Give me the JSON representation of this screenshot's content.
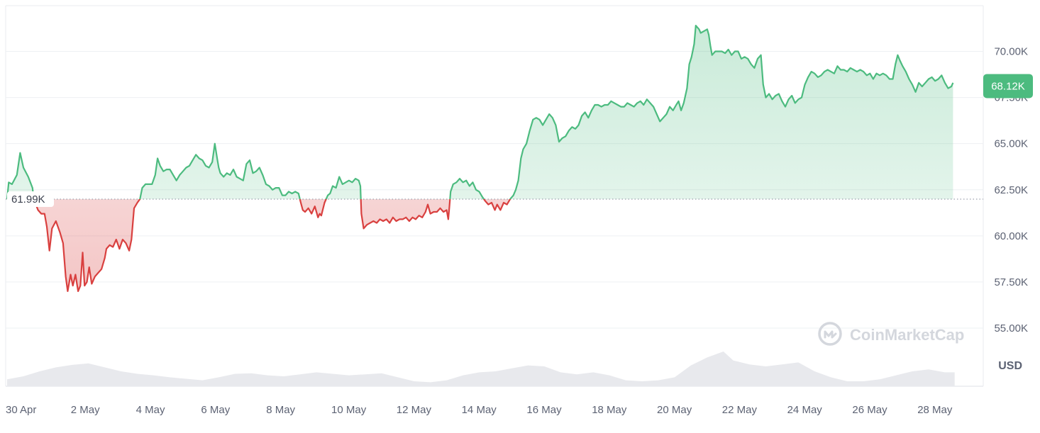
{
  "chart_data": {
    "type": "area",
    "currency_label": "USD",
    "watermark": "CoinMarketCap",
    "reference_value": 61990,
    "reference_label": "61.99K",
    "current_value": 68120,
    "current_label": "68.12K",
    "x_range_days": [
      0,
      30
    ],
    "ylim": [
      52500,
      72500
    ],
    "grid": true,
    "y_ticks": [
      {
        "value": 55000,
        "label": "55.00K"
      },
      {
        "value": 57500,
        "label": "57.50K"
      },
      {
        "value": 60000,
        "label": "60.00K"
      },
      {
        "value": 62500,
        "label": "62.50K"
      },
      {
        "value": 65000,
        "label": "65.00K"
      },
      {
        "value": 67500,
        "label": "67.50K"
      },
      {
        "value": 70000,
        "label": "70.00K"
      }
    ],
    "x_ticks": [
      {
        "day": 0,
        "label": "30 Apr"
      },
      {
        "day": 2,
        "label": "2 May"
      },
      {
        "day": 4,
        "label": "4 May"
      },
      {
        "day": 6,
        "label": "6 May"
      },
      {
        "day": 8,
        "label": "8 May"
      },
      {
        "day": 10,
        "label": "10 May"
      },
      {
        "day": 12,
        "label": "12 May"
      },
      {
        "day": 14,
        "label": "14 May"
      },
      {
        "day": 16,
        "label": "16 May"
      },
      {
        "day": 18,
        "label": "18 May"
      },
      {
        "day": 20,
        "label": "20 May"
      },
      {
        "day": 22,
        "label": "22 May"
      },
      {
        "day": 24,
        "label": "24 May"
      },
      {
        "day": 26,
        "label": "26 May"
      },
      {
        "day": 28,
        "label": "28 May"
      }
    ],
    "colors": {
      "up": "#4cbb7f",
      "down": "#d9403f",
      "up_fill": "#4cbb7f",
      "down_fill": "#d9403f",
      "grid": "#eef0f3",
      "volume": "#e8e9ed",
      "badge": "#4cbb7f"
    },
    "price_series": [
      [
        0.0,
        62000
      ],
      [
        0.05,
        62900
      ],
      [
        0.15,
        62800
      ],
      [
        0.3,
        63300
      ],
      [
        0.4,
        64500
      ],
      [
        0.5,
        63700
      ],
      [
        0.65,
        63200
      ],
      [
        0.78,
        62600
      ],
      [
        0.82,
        61990
      ],
      [
        0.95,
        61400
      ],
      [
        1.05,
        61200
      ],
      [
        1.15,
        61200
      ],
      [
        1.22,
        60500
      ],
      [
        1.3,
        59200
      ],
      [
        1.38,
        60400
      ],
      [
        1.5,
        60800
      ],
      [
        1.62,
        60200
      ],
      [
        1.72,
        59600
      ],
      [
        1.8,
        57800
      ],
      [
        1.86,
        57000
      ],
      [
        1.95,
        57900
      ],
      [
        2.02,
        57300
      ],
      [
        2.1,
        57900
      ],
      [
        2.18,
        57000
      ],
      [
        2.25,
        57300
      ],
      [
        2.32,
        59100
      ],
      [
        2.38,
        57300
      ],
      [
        2.45,
        57500
      ],
      [
        2.52,
        58300
      ],
      [
        2.6,
        57400
      ],
      [
        2.7,
        57800
      ],
      [
        2.8,
        58000
      ],
      [
        2.9,
        58200
      ],
      [
        3.0,
        58800
      ],
      [
        3.05,
        59300
      ],
      [
        3.15,
        59500
      ],
      [
        3.25,
        59400
      ],
      [
        3.35,
        59800
      ],
      [
        3.45,
        59300
      ],
      [
        3.55,
        59800
      ],
      [
        3.65,
        59600
      ],
      [
        3.75,
        59200
      ],
      [
        3.82,
        59800
      ],
      [
        3.9,
        61500
      ],
      [
        4.0,
        61800
      ],
      [
        4.08,
        62000
      ],
      [
        4.15,
        62600
      ],
      [
        4.25,
        62800
      ],
      [
        4.35,
        62800
      ],
      [
        4.45,
        62800
      ],
      [
        4.55,
        63300
      ],
      [
        4.62,
        64200
      ],
      [
        4.7,
        63800
      ],
      [
        4.8,
        63500
      ],
      [
        4.9,
        63600
      ],
      [
        5.0,
        63600
      ],
      [
        5.1,
        63300
      ],
      [
        5.2,
        63000
      ],
      [
        5.3,
        63300
      ],
      [
        5.4,
        63500
      ],
      [
        5.5,
        63700
      ],
      [
        5.6,
        63800
      ],
      [
        5.7,
        64100
      ],
      [
        5.8,
        64400
      ],
      [
        5.9,
        64200
      ],
      [
        6.0,
        64100
      ],
      [
        6.1,
        63800
      ],
      [
        6.2,
        63700
      ],
      [
        6.3,
        64000
      ],
      [
        6.38,
        65000
      ],
      [
        6.45,
        64200
      ],
      [
        6.5,
        63700
      ],
      [
        6.55,
        63400
      ],
      [
        6.65,
        63200
      ],
      [
        6.75,
        63400
      ],
      [
        6.85,
        63300
      ],
      [
        6.95,
        63600
      ],
      [
        7.05,
        63200
      ],
      [
        7.15,
        63100
      ],
      [
        7.25,
        63000
      ],
      [
        7.35,
        63900
      ],
      [
        7.45,
        64100
      ],
      [
        7.55,
        63400
      ],
      [
        7.65,
        63500
      ],
      [
        7.75,
        63700
      ],
      [
        7.85,
        63300
      ],
      [
        7.95,
        62800
      ],
      [
        8.05,
        62700
      ],
      [
        8.15,
        62500
      ],
      [
        8.25,
        62600
      ],
      [
        8.35,
        62600
      ],
      [
        8.45,
        62200
      ],
      [
        8.55,
        62200
      ],
      [
        8.65,
        62400
      ],
      [
        8.75,
        62300
      ],
      [
        8.85,
        62400
      ],
      [
        8.95,
        62300
      ],
      [
        9.02,
        61800
      ],
      [
        9.08,
        61400
      ],
      [
        9.15,
        61300
      ],
      [
        9.25,
        61500
      ],
      [
        9.35,
        61200
      ],
      [
        9.45,
        61600
      ],
      [
        9.55,
        61000
      ],
      [
        9.6,
        61200
      ],
      [
        9.65,
        61100
      ],
      [
        9.75,
        61800
      ],
      [
        9.85,
        62200
      ],
      [
        9.92,
        62300
      ],
      [
        10.0,
        62700
      ],
      [
        10.1,
        62600
      ],
      [
        10.2,
        63200
      ],
      [
        10.3,
        62800
      ],
      [
        10.4,
        62900
      ],
      [
        10.5,
        63000
      ],
      [
        10.6,
        62900
      ],
      [
        10.7,
        63100
      ],
      [
        10.8,
        63000
      ],
      [
        10.85,
        62700
      ],
      [
        10.88,
        61200
      ],
      [
        10.95,
        60400
      ],
      [
        11.05,
        60600
      ],
      [
        11.15,
        60700
      ],
      [
        11.25,
        60800
      ],
      [
        11.35,
        60700
      ],
      [
        11.45,
        60900
      ],
      [
        11.55,
        60800
      ],
      [
        11.65,
        60900
      ],
      [
        11.75,
        60700
      ],
      [
        11.85,
        61000
      ],
      [
        11.95,
        60800
      ],
      [
        12.05,
        60900
      ],
      [
        12.15,
        60900
      ],
      [
        12.25,
        61000
      ],
      [
        12.35,
        60800
      ],
      [
        12.45,
        61000
      ],
      [
        12.55,
        60900
      ],
      [
        12.65,
        61100
      ],
      [
        12.75,
        61000
      ],
      [
        12.85,
        61300
      ],
      [
        12.92,
        61700
      ],
      [
        13.0,
        61200
      ],
      [
        13.1,
        61300
      ],
      [
        13.2,
        61300
      ],
      [
        13.3,
        61500
      ],
      [
        13.4,
        61300
      ],
      [
        13.5,
        61400
      ],
      [
        13.55,
        60900
      ],
      [
        13.58,
        61500
      ],
      [
        13.62,
        62400
      ],
      [
        13.7,
        62800
      ],
      [
        13.8,
        62900
      ],
      [
        13.9,
        63100
      ],
      [
        14.0,
        62900
      ],
      [
        14.1,
        63000
      ],
      [
        14.2,
        62700
      ],
      [
        14.3,
        62900
      ],
      [
        14.4,
        62500
      ],
      [
        14.5,
        62400
      ],
      [
        14.6,
        62100
      ],
      [
        14.68,
        61900
      ],
      [
        14.78,
        61700
      ],
      [
        14.88,
        61800
      ],
      [
        14.98,
        61400
      ],
      [
        15.05,
        61700
      ],
      [
        15.15,
        61400
      ],
      [
        15.25,
        61800
      ],
      [
        15.35,
        61700
      ],
      [
        15.45,
        62000
      ],
      [
        15.55,
        62200
      ],
      [
        15.62,
        62500
      ],
      [
        15.7,
        63000
      ],
      [
        15.78,
        64200
      ],
      [
        15.85,
        64700
      ],
      [
        15.95,
        65000
      ],
      [
        16.05,
        65700
      ],
      [
        16.15,
        66300
      ],
      [
        16.25,
        66400
      ],
      [
        16.35,
        66300
      ],
      [
        16.45,
        66000
      ],
      [
        16.55,
        66300
      ],
      [
        16.65,
        66600
      ],
      [
        16.75,
        66400
      ],
      [
        16.85,
        66000
      ],
      [
        16.95,
        65100
      ],
      [
        17.05,
        65300
      ],
      [
        17.15,
        65400
      ],
      [
        17.25,
        65700
      ],
      [
        17.35,
        65900
      ],
      [
        17.45,
        65800
      ],
      [
        17.55,
        66000
      ],
      [
        17.65,
        66500
      ],
      [
        17.75,
        66700
      ],
      [
        17.85,
        66400
      ],
      [
        17.95,
        66800
      ],
      [
        18.05,
        67100
      ],
      [
        18.15,
        67100
      ],
      [
        18.25,
        67000
      ],
      [
        18.35,
        67100
      ],
      [
        18.45,
        67100
      ],
      [
        18.55,
        67300
      ],
      [
        18.65,
        67200
      ],
      [
        18.75,
        67100
      ],
      [
        18.85,
        67000
      ],
      [
        18.95,
        67000
      ],
      [
        19.05,
        67200
      ],
      [
        19.15,
        67100
      ],
      [
        19.25,
        67000
      ],
      [
        19.35,
        67200
      ],
      [
        19.45,
        67300
      ],
      [
        19.55,
        67100
      ],
      [
        19.65,
        67400
      ],
      [
        19.75,
        67200
      ],
      [
        19.85,
        67000
      ],
      [
        19.95,
        66600
      ],
      [
        20.05,
        66200
      ],
      [
        20.15,
        66400
      ],
      [
        20.25,
        66600
      ],
      [
        20.35,
        67000
      ],
      [
        20.45,
        66800
      ],
      [
        20.55,
        67100
      ],
      [
        20.62,
        67300
      ],
      [
        20.7,
        66800
      ],
      [
        20.78,
        67200
      ],
      [
        20.88,
        68000
      ],
      [
        20.95,
        69300
      ],
      [
        21.02,
        69700
      ],
      [
        21.1,
        70400
      ],
      [
        21.15,
        71400
      ],
      [
        21.2,
        71300
      ],
      [
        21.25,
        71200
      ],
      [
        21.3,
        71000
      ],
      [
        21.4,
        71100
      ],
      [
        21.5,
        71200
      ],
      [
        21.55,
        70900
      ],
      [
        21.6,
        70300
      ],
      [
        21.65,
        69800
      ],
      [
        21.75,
        70000
      ],
      [
        21.85,
        70000
      ],
      [
        21.95,
        70000
      ],
      [
        22.05,
        69900
      ],
      [
        22.15,
        70100
      ],
      [
        22.25,
        69800
      ],
      [
        22.35,
        70000
      ],
      [
        22.45,
        70000
      ],
      [
        22.55,
        69600
      ],
      [
        22.65,
        69700
      ],
      [
        22.75,
        69600
      ],
      [
        22.85,
        69300
      ],
      [
        22.95,
        69100
      ],
      [
        23.05,
        69600
      ],
      [
        23.15,
        69800
      ],
      [
        23.22,
        68200
      ],
      [
        23.3,
        67500
      ],
      [
        23.4,
        67700
      ],
      [
        23.5,
        67400
      ],
      [
        23.6,
        67600
      ],
      [
        23.7,
        67700
      ],
      [
        23.8,
        67300
      ],
      [
        23.9,
        67000
      ],
      [
        24.0,
        67400
      ],
      [
        24.1,
        67600
      ],
      [
        24.2,
        67200
      ],
      [
        24.3,
        67400
      ],
      [
        24.4,
        67500
      ],
      [
        24.5,
        68200
      ],
      [
        24.6,
        68600
      ],
      [
        24.7,
        68900
      ],
      [
        24.8,
        68800
      ],
      [
        24.9,
        68600
      ],
      [
        25.0,
        68700
      ],
      [
        25.1,
        68900
      ],
      [
        25.2,
        69000
      ],
      [
        25.3,
        68900
      ],
      [
        25.4,
        68800
      ],
      [
        25.5,
        69200
      ],
      [
        25.6,
        69000
      ],
      [
        25.7,
        69000
      ],
      [
        25.8,
        68900
      ],
      [
        25.9,
        69100
      ],
      [
        26.0,
        69000
      ],
      [
        26.1,
        68900
      ],
      [
        26.2,
        69000
      ],
      [
        26.3,
        68900
      ],
      [
        26.4,
        68700
      ],
      [
        26.5,
        68800
      ],
      [
        26.6,
        68500
      ],
      [
        26.7,
        68800
      ],
      [
        26.8,
        68700
      ],
      [
        26.9,
        68800
      ],
      [
        27.0,
        68700
      ],
      [
        27.1,
        68500
      ],
      [
        27.2,
        68500
      ],
      [
        27.28,
        69300
      ],
      [
        27.35,
        69800
      ],
      [
        27.42,
        69500
      ],
      [
        27.5,
        69200
      ],
      [
        27.6,
        68900
      ],
      [
        27.7,
        68500
      ],
      [
        27.8,
        68200
      ],
      [
        27.9,
        67800
      ],
      [
        28.0,
        68300
      ],
      [
        28.1,
        68100
      ],
      [
        28.2,
        68300
      ],
      [
        28.3,
        68500
      ],
      [
        28.4,
        68600
      ],
      [
        28.5,
        68400
      ],
      [
        28.6,
        68500
      ],
      [
        28.7,
        68700
      ],
      [
        28.8,
        68300
      ],
      [
        28.9,
        68000
      ],
      [
        29.0,
        68100
      ],
      [
        29.05,
        68300
      ]
    ],
    "volume_series": [
      [
        0.0,
        0.14
      ],
      [
        0.5,
        0.2
      ],
      [
        1.0,
        0.3
      ],
      [
        1.5,
        0.38
      ],
      [
        2.0,
        0.43
      ],
      [
        2.5,
        0.46
      ],
      [
        3.0,
        0.38
      ],
      [
        3.5,
        0.3
      ],
      [
        4.0,
        0.25
      ],
      [
        4.5,
        0.22
      ],
      [
        5.0,
        0.18
      ],
      [
        5.5,
        0.15
      ],
      [
        6.0,
        0.12
      ],
      [
        6.5,
        0.18
      ],
      [
        7.0,
        0.25
      ],
      [
        7.5,
        0.26
      ],
      [
        8.0,
        0.22
      ],
      [
        8.5,
        0.2
      ],
      [
        9.0,
        0.24
      ],
      [
        9.5,
        0.28
      ],
      [
        10.0,
        0.25
      ],
      [
        10.5,
        0.22
      ],
      [
        11.0,
        0.24
      ],
      [
        11.5,
        0.26
      ],
      [
        12.0,
        0.18
      ],
      [
        12.5,
        0.1
      ],
      [
        13.0,
        0.08
      ],
      [
        13.5,
        0.12
      ],
      [
        14.0,
        0.22
      ],
      [
        14.5,
        0.28
      ],
      [
        15.0,
        0.3
      ],
      [
        15.5,
        0.36
      ],
      [
        16.0,
        0.42
      ],
      [
        16.5,
        0.4
      ],
      [
        17.0,
        0.28
      ],
      [
        17.5,
        0.24
      ],
      [
        18.0,
        0.28
      ],
      [
        18.5,
        0.22
      ],
      [
        19.0,
        0.12
      ],
      [
        19.5,
        0.1
      ],
      [
        20.0,
        0.12
      ],
      [
        20.5,
        0.18
      ],
      [
        21.0,
        0.42
      ],
      [
        21.5,
        0.58
      ],
      [
        22.0,
        0.7
      ],
      [
        22.3,
        0.52
      ],
      [
        22.8,
        0.44
      ],
      [
        23.3,
        0.4
      ],
      [
        23.8,
        0.44
      ],
      [
        24.3,
        0.48
      ],
      [
        24.8,
        0.3
      ],
      [
        25.3,
        0.18
      ],
      [
        25.8,
        0.1
      ],
      [
        26.3,
        0.1
      ],
      [
        26.8,
        0.14
      ],
      [
        27.3,
        0.22
      ],
      [
        27.8,
        0.3
      ],
      [
        28.3,
        0.34
      ],
      [
        28.8,
        0.28
      ],
      [
        29.1,
        0.28
      ]
    ]
  }
}
